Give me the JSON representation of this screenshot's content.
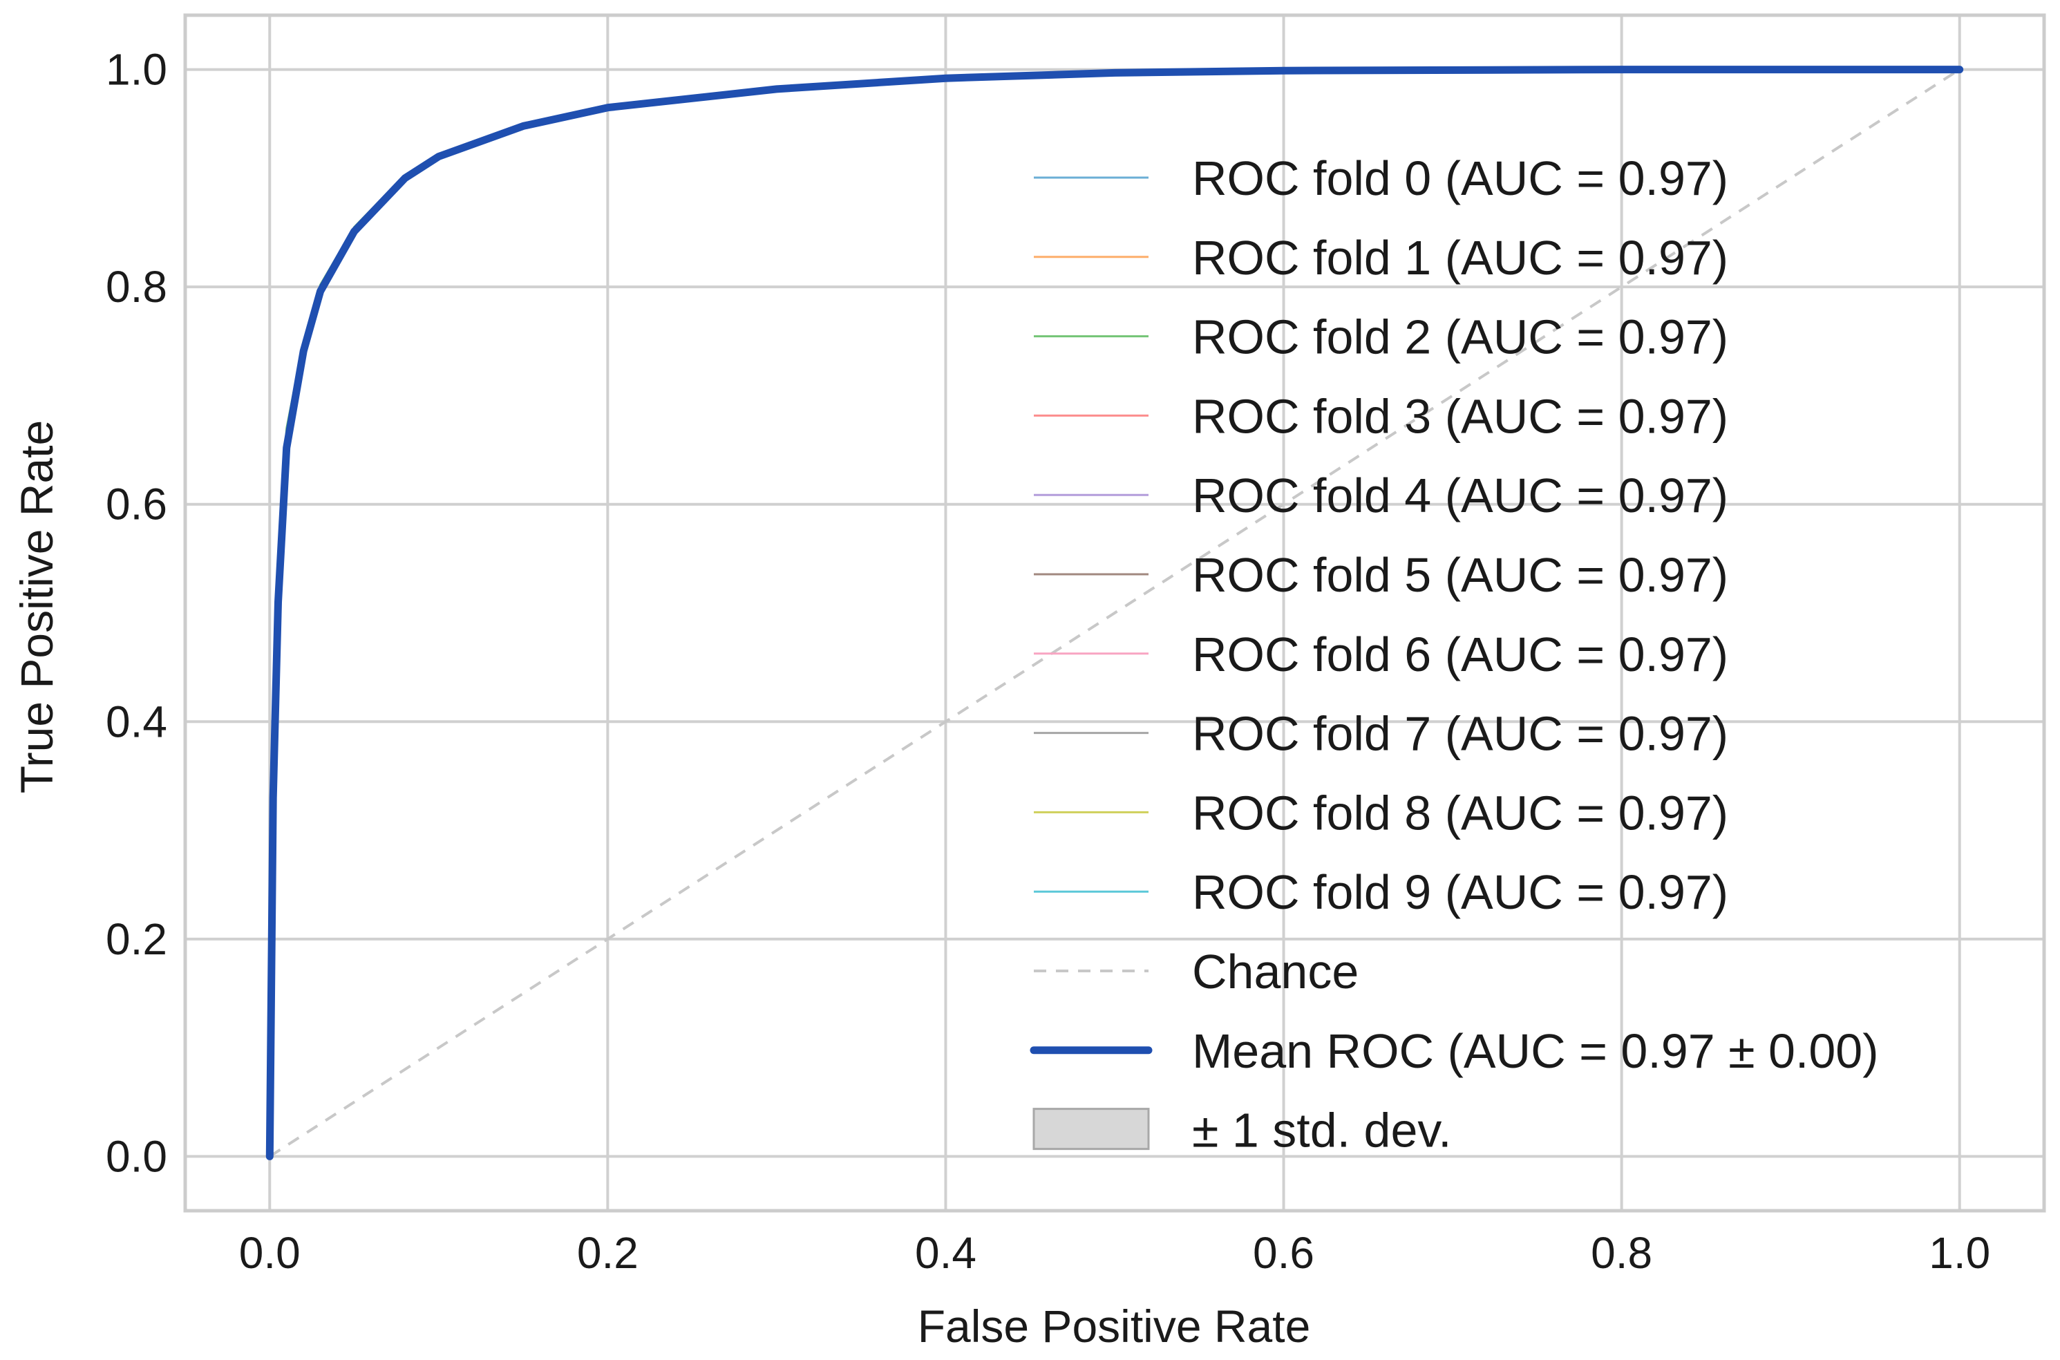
{
  "chart_data": {
    "type": "line",
    "title": "",
    "xlabel": "False Positive Rate",
    "ylabel": "True Positive Rate",
    "xlim": [
      -0.05,
      1.05
    ],
    "ylim": [
      -0.05,
      1.05
    ],
    "grid": true,
    "x_ticks": [
      0.0,
      0.2,
      0.4,
      0.6,
      0.8,
      1.0
    ],
    "x_tick_labels": [
      "0.0",
      "0.2",
      "0.4",
      "0.6",
      "0.8",
      "1.0"
    ],
    "y_ticks": [
      0.0,
      0.2,
      0.4,
      0.6,
      0.8,
      1.0
    ],
    "y_tick_labels": [
      "0.0",
      "0.2",
      "0.4",
      "0.6",
      "0.8",
      "1.0"
    ],
    "legend_position": "lower right",
    "series": [
      {
        "name": "ROC fold 0 (AUC = 0.97)",
        "color": "#6baed6",
        "style": "solid",
        "width": "thin",
        "x": [
          0,
          0.002,
          0.005,
          0.01,
          0.02,
          0.03,
          0.05,
          0.08,
          0.1,
          0.15,
          0.2,
          0.3,
          0.4,
          0.5,
          0.6,
          0.8,
          1.0
        ],
        "y": [
          0,
          0.32,
          0.5,
          0.65,
          0.74,
          0.795,
          0.85,
          0.9,
          0.92,
          0.948,
          0.965,
          0.982,
          0.992,
          0.997,
          0.999,
          1.0,
          1.0
        ]
      },
      {
        "name": "ROC fold 1 (AUC = 0.97)",
        "color": "#fdae6b",
        "style": "solid",
        "width": "thin",
        "x": [
          0,
          0.002,
          0.005,
          0.01,
          0.02,
          0.03,
          0.05,
          0.08,
          0.1,
          0.15,
          0.2,
          0.3,
          0.4,
          0.5,
          0.6,
          0.8,
          1.0
        ],
        "y": [
          0,
          0.34,
          0.52,
          0.66,
          0.745,
          0.8,
          0.853,
          0.902,
          0.921,
          0.949,
          0.966,
          0.983,
          0.992,
          0.997,
          0.999,
          1.0,
          1.0
        ]
      },
      {
        "name": "ROC fold 2 (AUC = 0.97)",
        "color": "#74c476",
        "style": "solid",
        "width": "thin",
        "x": [
          0,
          0.002,
          0.005,
          0.01,
          0.02,
          0.03,
          0.05,
          0.08,
          0.1,
          0.15,
          0.2,
          0.3,
          0.4,
          0.5,
          0.6,
          0.8,
          1.0
        ],
        "y": [
          0,
          0.36,
          0.55,
          0.67,
          0.75,
          0.802,
          0.855,
          0.903,
          0.922,
          0.95,
          0.966,
          0.983,
          0.992,
          0.997,
          0.999,
          1.0,
          1.0
        ]
      },
      {
        "name": "ROC fold 3 (AUC = 0.97)",
        "color": "#fc8d8d",
        "style": "solid",
        "width": "thin",
        "x": [
          0,
          0.002,
          0.005,
          0.01,
          0.02,
          0.03,
          0.05,
          0.08,
          0.1,
          0.15,
          0.2,
          0.3,
          0.4,
          0.5,
          0.6,
          0.8,
          1.0
        ],
        "y": [
          0,
          0.31,
          0.5,
          0.645,
          0.738,
          0.792,
          0.848,
          0.898,
          0.918,
          0.947,
          0.964,
          0.982,
          0.991,
          0.996,
          0.999,
          1.0,
          1.0
        ]
      },
      {
        "name": "ROC fold 4 (AUC = 0.97)",
        "color": "#b39ddb",
        "style": "solid",
        "width": "thin",
        "x": [
          0,
          0.002,
          0.005,
          0.01,
          0.02,
          0.03,
          0.05,
          0.08,
          0.1,
          0.15,
          0.2,
          0.3,
          0.4,
          0.5,
          0.6,
          0.8,
          1.0
        ],
        "y": [
          0,
          0.33,
          0.51,
          0.65,
          0.74,
          0.796,
          0.851,
          0.9,
          0.92,
          0.948,
          0.965,
          0.982,
          0.992,
          0.997,
          0.999,
          1.0,
          1.0
        ]
      },
      {
        "name": "ROC fold 5 (AUC = 0.97)",
        "color": "#a1887f",
        "style": "solid",
        "width": "thin",
        "x": [
          0,
          0.002,
          0.005,
          0.01,
          0.02,
          0.03,
          0.05,
          0.08,
          0.1,
          0.15,
          0.2,
          0.3,
          0.4,
          0.5,
          0.6,
          0.8,
          1.0
        ],
        "y": [
          0,
          0.33,
          0.51,
          0.655,
          0.742,
          0.797,
          0.852,
          0.9,
          0.92,
          0.948,
          0.965,
          0.982,
          0.992,
          0.997,
          0.999,
          1.0,
          1.0
        ]
      },
      {
        "name": "ROC fold 6 (AUC = 0.97)",
        "color": "#f8a5c2",
        "style": "solid",
        "width": "thin",
        "x": [
          0,
          0.002,
          0.005,
          0.01,
          0.02,
          0.03,
          0.05,
          0.08,
          0.1,
          0.15,
          0.2,
          0.3,
          0.4,
          0.5,
          0.6,
          0.8,
          1.0
        ],
        "y": [
          0,
          0.32,
          0.5,
          0.648,
          0.739,
          0.794,
          0.849,
          0.899,
          0.919,
          0.948,
          0.965,
          0.982,
          0.992,
          0.997,
          0.999,
          1.0,
          1.0
        ]
      },
      {
        "name": "ROC fold 7 (AUC = 0.97)",
        "color": "#a6a6a6",
        "style": "solid",
        "width": "thin",
        "x": [
          0,
          0.002,
          0.005,
          0.01,
          0.02,
          0.03,
          0.05,
          0.08,
          0.1,
          0.15,
          0.2,
          0.3,
          0.4,
          0.5,
          0.6,
          0.8,
          1.0
        ],
        "y": [
          0,
          0.33,
          0.51,
          0.652,
          0.741,
          0.796,
          0.851,
          0.9,
          0.92,
          0.948,
          0.965,
          0.982,
          0.992,
          0.997,
          0.999,
          1.0,
          1.0
        ]
      },
      {
        "name": "ROC fold 8 (AUC = 0.97)",
        "color": "#cfd05a",
        "style": "solid",
        "width": "thin",
        "x": [
          0,
          0.002,
          0.005,
          0.01,
          0.02,
          0.03,
          0.05,
          0.08,
          0.1,
          0.15,
          0.2,
          0.3,
          0.4,
          0.5,
          0.6,
          0.8,
          1.0
        ],
        "y": [
          0,
          0.34,
          0.52,
          0.658,
          0.744,
          0.799,
          0.853,
          0.901,
          0.921,
          0.949,
          0.966,
          0.983,
          0.992,
          0.997,
          0.999,
          1.0,
          1.0
        ]
      },
      {
        "name": "ROC fold 9 (AUC = 0.97)",
        "color": "#5bc8d8",
        "style": "solid",
        "width": "thin",
        "x": [
          0,
          0.002,
          0.005,
          0.01,
          0.02,
          0.03,
          0.05,
          0.08,
          0.1,
          0.15,
          0.2,
          0.3,
          0.4,
          0.5,
          0.6,
          0.8,
          1.0
        ],
        "y": [
          0,
          0.33,
          0.51,
          0.651,
          0.741,
          0.796,
          0.851,
          0.9,
          0.92,
          0.948,
          0.965,
          0.982,
          0.992,
          0.997,
          0.999,
          1.0,
          1.0
        ]
      },
      {
        "name": "Chance",
        "color": "#c8c8c8",
        "style": "dashed",
        "width": "medium",
        "x": [
          0,
          1
        ],
        "y": [
          0,
          1
        ]
      },
      {
        "name": "Mean ROC (AUC = 0.97 ± 0.00)",
        "color": "#1f4fb0",
        "style": "solid",
        "width": "thick",
        "x": [
          0,
          0.002,
          0.005,
          0.01,
          0.02,
          0.03,
          0.05,
          0.08,
          0.1,
          0.15,
          0.2,
          0.3,
          0.4,
          0.5,
          0.6,
          0.8,
          1.0
        ],
        "y": [
          0,
          0.33,
          0.51,
          0.652,
          0.741,
          0.796,
          0.851,
          0.9,
          0.92,
          0.948,
          0.965,
          0.982,
          0.992,
          0.997,
          0.999,
          1.0,
          1.0
        ]
      }
    ],
    "band": {
      "name": "± 1 std. dev.",
      "color": "#bdbdbd",
      "opacity": 0.55,
      "spread": 0.0
    }
  }
}
